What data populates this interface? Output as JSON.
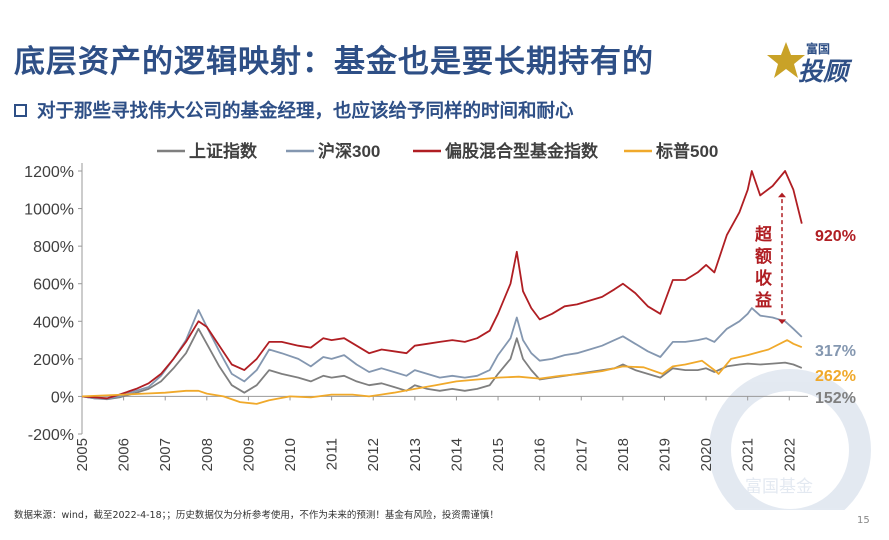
{
  "header": {
    "title": "底层资产的逻辑映射：基金也是要长期持有的",
    "subtitle": "对于那些寻找伟大公司的基金经理，也应该给予同样的时间和耐心"
  },
  "logo": {
    "line1": "富国",
    "line2": "投顾"
  },
  "watermark": {
    "text": "富国基金"
  },
  "footer": {
    "source": "数据来源：wind，截至2022-4-18；；历史数据仅为分析参考使用，不作为未来的预测！基金有风险，投资需谨慎！",
    "page_number": "15"
  },
  "chart_data": {
    "type": "line",
    "x_tick_labels": [
      "2005",
      "2006",
      "2007",
      "2008",
      "2009",
      "2010",
      "2011",
      "2012",
      "2013",
      "2014",
      "2015",
      "2016",
      "2017",
      "2018",
      "2019",
      "2020",
      "2021",
      "2022"
    ],
    "y_tick_labels": [
      "-200%",
      "0%",
      "200%",
      "400%",
      "600%",
      "800%",
      "1000%",
      "1200%"
    ],
    "ylim": [
      -200,
      1200
    ],
    "xlim": [
      2005.0,
      2022.45
    ],
    "grid": false,
    "legend_position": "top",
    "annotation": {
      "text": "超额收益",
      "color": "#b01e23"
    },
    "series": [
      {
        "name": "上证指数",
        "color": "#7f7f7f",
        "end_label": "152%",
        "points": [
          [
            2005.0,
            0
          ],
          [
            2005.3,
            -10
          ],
          [
            2005.6,
            -15
          ],
          [
            2005.9,
            -5
          ],
          [
            2006.3,
            20
          ],
          [
            2006.6,
            40
          ],
          [
            2006.9,
            80
          ],
          [
            2007.2,
            150
          ],
          [
            2007.5,
            230
          ],
          [
            2007.8,
            360
          ],
          [
            2008.0,
            280
          ],
          [
            2008.3,
            160
          ],
          [
            2008.6,
            60
          ],
          [
            2008.9,
            20
          ],
          [
            2009.2,
            60
          ],
          [
            2009.5,
            140
          ],
          [
            2009.8,
            120
          ],
          [
            2010.2,
            100
          ],
          [
            2010.5,
            80
          ],
          [
            2010.8,
            110
          ],
          [
            2011.0,
            100
          ],
          [
            2011.3,
            110
          ],
          [
            2011.6,
            80
          ],
          [
            2011.9,
            60
          ],
          [
            2012.2,
            70
          ],
          [
            2012.5,
            50
          ],
          [
            2012.8,
            30
          ],
          [
            2013.0,
            60
          ],
          [
            2013.3,
            40
          ],
          [
            2013.6,
            30
          ],
          [
            2013.9,
            40
          ],
          [
            2014.2,
            30
          ],
          [
            2014.5,
            40
          ],
          [
            2014.8,
            60
          ],
          [
            2015.0,
            120
          ],
          [
            2015.3,
            200
          ],
          [
            2015.45,
            310
          ],
          [
            2015.6,
            200
          ],
          [
            2015.8,
            140
          ],
          [
            2016.0,
            90
          ],
          [
            2016.3,
            100
          ],
          [
            2016.6,
            110
          ],
          [
            2016.9,
            120
          ],
          [
            2017.2,
            130
          ],
          [
            2017.5,
            140
          ],
          [
            2017.8,
            150
          ],
          [
            2018.0,
            170
          ],
          [
            2018.3,
            140
          ],
          [
            2018.6,
            120
          ],
          [
            2018.9,
            100
          ],
          [
            2019.2,
            150
          ],
          [
            2019.5,
            140
          ],
          [
            2019.8,
            140
          ],
          [
            2020.0,
            150
          ],
          [
            2020.2,
            130
          ],
          [
            2020.5,
            160
          ],
          [
            2020.8,
            170
          ],
          [
            2021.0,
            175
          ],
          [
            2021.3,
            170
          ],
          [
            2021.6,
            175
          ],
          [
            2021.9,
            180
          ],
          [
            2022.1,
            170
          ],
          [
            2022.3,
            152
          ]
        ]
      },
      {
        "name": "沪深300",
        "color": "#8497b0",
        "end_label": "317%",
        "points": [
          [
            2005.0,
            0
          ],
          [
            2005.3,
            -10
          ],
          [
            2005.6,
            -12
          ],
          [
            2005.9,
            0
          ],
          [
            2006.3,
            30
          ],
          [
            2006.6,
            50
          ],
          [
            2006.9,
            110
          ],
          [
            2007.2,
            200
          ],
          [
            2007.5,
            300
          ],
          [
            2007.8,
            460
          ],
          [
            2008.0,
            370
          ],
          [
            2008.3,
            240
          ],
          [
            2008.6,
            120
          ],
          [
            2008.9,
            80
          ],
          [
            2009.2,
            140
          ],
          [
            2009.5,
            250
          ],
          [
            2009.8,
            230
          ],
          [
            2010.2,
            200
          ],
          [
            2010.5,
            160
          ],
          [
            2010.8,
            210
          ],
          [
            2011.0,
            200
          ],
          [
            2011.3,
            220
          ],
          [
            2011.6,
            170
          ],
          [
            2011.9,
            130
          ],
          [
            2012.2,
            150
          ],
          [
            2012.5,
            130
          ],
          [
            2012.8,
            110
          ],
          [
            2013.0,
            140
          ],
          [
            2013.3,
            120
          ],
          [
            2013.6,
            100
          ],
          [
            2013.9,
            110
          ],
          [
            2014.2,
            100
          ],
          [
            2014.5,
            110
          ],
          [
            2014.8,
            140
          ],
          [
            2015.0,
            220
          ],
          [
            2015.3,
            310
          ],
          [
            2015.45,
            420
          ],
          [
            2015.6,
            300
          ],
          [
            2015.8,
            230
          ],
          [
            2016.0,
            190
          ],
          [
            2016.3,
            200
          ],
          [
            2016.6,
            220
          ],
          [
            2016.9,
            230
          ],
          [
            2017.2,
            250
          ],
          [
            2017.5,
            270
          ],
          [
            2017.8,
            300
          ],
          [
            2018.0,
            320
          ],
          [
            2018.3,
            280
          ],
          [
            2018.6,
            240
          ],
          [
            2018.9,
            210
          ],
          [
            2019.2,
            290
          ],
          [
            2019.5,
            290
          ],
          [
            2019.8,
            300
          ],
          [
            2020.0,
            310
          ],
          [
            2020.2,
            290
          ],
          [
            2020.5,
            360
          ],
          [
            2020.8,
            400
          ],
          [
            2021.0,
            440
          ],
          [
            2021.1,
            470
          ],
          [
            2021.3,
            430
          ],
          [
            2021.6,
            420
          ],
          [
            2021.9,
            400
          ],
          [
            2022.1,
            360
          ],
          [
            2022.3,
            317
          ]
        ]
      },
      {
        "name": "偏股混合型基金指数",
        "color": "#b01e23",
        "end_label": "920%",
        "points": [
          [
            2005.0,
            0
          ],
          [
            2005.3,
            -5
          ],
          [
            2005.6,
            -10
          ],
          [
            2005.9,
            10
          ],
          [
            2006.3,
            40
          ],
          [
            2006.6,
            70
          ],
          [
            2006.9,
            120
          ],
          [
            2007.2,
            200
          ],
          [
            2007.5,
            290
          ],
          [
            2007.8,
            400
          ],
          [
            2008.0,
            370
          ],
          [
            2008.3,
            270
          ],
          [
            2008.6,
            170
          ],
          [
            2008.9,
            140
          ],
          [
            2009.2,
            200
          ],
          [
            2009.5,
            290
          ],
          [
            2009.8,
            290
          ],
          [
            2010.2,
            270
          ],
          [
            2010.5,
            260
          ],
          [
            2010.8,
            310
          ],
          [
            2011.0,
            300
          ],
          [
            2011.3,
            310
          ],
          [
            2011.6,
            270
          ],
          [
            2011.9,
            230
          ],
          [
            2012.2,
            250
          ],
          [
            2012.5,
            240
          ],
          [
            2012.8,
            230
          ],
          [
            2013.0,
            270
          ],
          [
            2013.3,
            280
          ],
          [
            2013.6,
            290
          ],
          [
            2013.9,
            300
          ],
          [
            2014.2,
            290
          ],
          [
            2014.5,
            310
          ],
          [
            2014.8,
            350
          ],
          [
            2015.0,
            440
          ],
          [
            2015.3,
            600
          ],
          [
            2015.45,
            770
          ],
          [
            2015.6,
            560
          ],
          [
            2015.8,
            470
          ],
          [
            2016.0,
            410
          ],
          [
            2016.3,
            440
          ],
          [
            2016.6,
            480
          ],
          [
            2016.9,
            490
          ],
          [
            2017.2,
            510
          ],
          [
            2017.5,
            530
          ],
          [
            2017.8,
            570
          ],
          [
            2018.0,
            600
          ],
          [
            2018.3,
            550
          ],
          [
            2018.6,
            480
          ],
          [
            2018.9,
            440
          ],
          [
            2019.2,
            620
          ],
          [
            2019.5,
            620
          ],
          [
            2019.8,
            660
          ],
          [
            2020.0,
            700
          ],
          [
            2020.2,
            660
          ],
          [
            2020.5,
            860
          ],
          [
            2020.8,
            980
          ],
          [
            2021.0,
            1100
          ],
          [
            2021.1,
            1200
          ],
          [
            2021.3,
            1070
          ],
          [
            2021.6,
            1120
          ],
          [
            2021.9,
            1200
          ],
          [
            2022.1,
            1100
          ],
          [
            2022.3,
            920
          ]
        ]
      },
      {
        "name": "标普500",
        "color": "#f0a92b",
        "end_label": "262%",
        "points": [
          [
            2005.0,
            0
          ],
          [
            2005.5,
            5
          ],
          [
            2006.0,
            10
          ],
          [
            2006.5,
            15
          ],
          [
            2007.0,
            20
          ],
          [
            2007.5,
            30
          ],
          [
            2007.8,
            30
          ],
          [
            2008.0,
            15
          ],
          [
            2008.4,
            0
          ],
          [
            2008.8,
            -30
          ],
          [
            2009.2,
            -40
          ],
          [
            2009.5,
            -20
          ],
          [
            2010.0,
            0
          ],
          [
            2010.5,
            -5
          ],
          [
            2011.0,
            10
          ],
          [
            2011.5,
            10
          ],
          [
            2011.9,
            0
          ],
          [
            2012.5,
            20
          ],
          [
            2013.0,
            40
          ],
          [
            2013.5,
            60
          ],
          [
            2014.0,
            80
          ],
          [
            2014.5,
            90
          ],
          [
            2015.0,
            100
          ],
          [
            2015.5,
            105
          ],
          [
            2016.0,
            95
          ],
          [
            2016.5,
            110
          ],
          [
            2017.0,
            120
          ],
          [
            2017.5,
            135
          ],
          [
            2018.0,
            160
          ],
          [
            2018.5,
            155
          ],
          [
            2018.95,
            120
          ],
          [
            2019.2,
            160
          ],
          [
            2019.5,
            170
          ],
          [
            2019.9,
            190
          ],
          [
            2020.2,
            140
          ],
          [
            2020.3,
            120
          ],
          [
            2020.6,
            200
          ],
          [
            2021.0,
            220
          ],
          [
            2021.5,
            250
          ],
          [
            2021.95,
            300
          ],
          [
            2022.1,
            280
          ],
          [
            2022.3,
            262
          ]
        ]
      }
    ]
  }
}
